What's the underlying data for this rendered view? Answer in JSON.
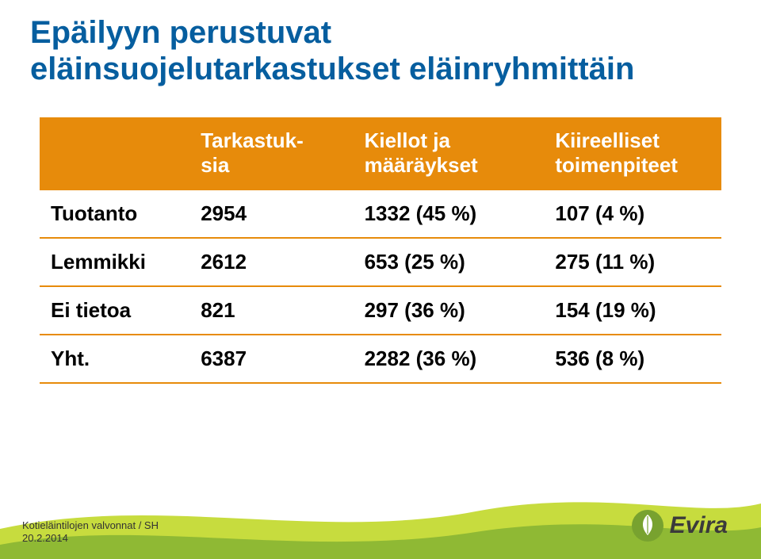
{
  "colors": {
    "title": "#065e9f",
    "header_bg": "#e78b0b",
    "header_text": "#ffffff",
    "row_border": "#e78b0b",
    "cell_text": "#000000",
    "wave_light": "#c7dc3e",
    "wave_dark": "#8fb934",
    "logo_circle": "#78a22f",
    "logo_text": "#3b3b3b",
    "footer_text": "#333333"
  },
  "title": {
    "line1": "Epäilyyn perustuvat",
    "line2": "eläinsuojelutarkastukset eläinryhmittäin",
    "fontsize": 40,
    "weight": "bold"
  },
  "table": {
    "fontsize": 26,
    "columns": [
      "",
      "Tarkastuk-\nsia",
      "Kiellot ja\nmääräykset",
      "Kiireelliset\ntoimenpiteet"
    ],
    "col_widths_pct": [
      22,
      24,
      28,
      26
    ],
    "rows": [
      {
        "label": "Tuotanto",
        "cells": [
          "2954",
          "1332 (45 %)",
          "107 (4 %)"
        ]
      },
      {
        "label": "Lemmikki",
        "cells": [
          "2612",
          "653 (25 %)",
          "275 (11 %)"
        ]
      },
      {
        "label": "Ei tietoa",
        "cells": [
          "821",
          "297 (36 %)",
          "154 (19 %)"
        ]
      },
      {
        "label": "Yht.",
        "cells": [
          "6387",
          "2282 (36 %)",
          "536 (8 %)"
        ]
      }
    ]
  },
  "footer": {
    "line1": "Kotieläintilojen valvonnat / SH",
    "line2": "20.2.2014"
  },
  "logo": {
    "text": "Evira"
  }
}
